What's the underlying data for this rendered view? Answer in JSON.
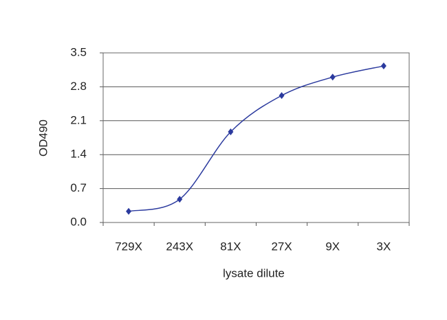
{
  "chart_data": {
    "type": "line",
    "x_label": "lysate dilute",
    "y_label": "OD490",
    "categories": [
      "729X",
      "243X",
      "81X",
      "27X",
      "9X",
      "3X"
    ],
    "values": [
      0.23,
      0.48,
      1.87,
      2.62,
      3.0,
      3.23
    ],
    "color": "#2b3a9e",
    "ylim": [
      0,
      3.5
    ],
    "yticks": [
      {
        "value": 0,
        "label": "0.0"
      },
      0.7,
      1.4,
      2.1,
      2.8,
      3.5
    ],
    "grid": true
  }
}
